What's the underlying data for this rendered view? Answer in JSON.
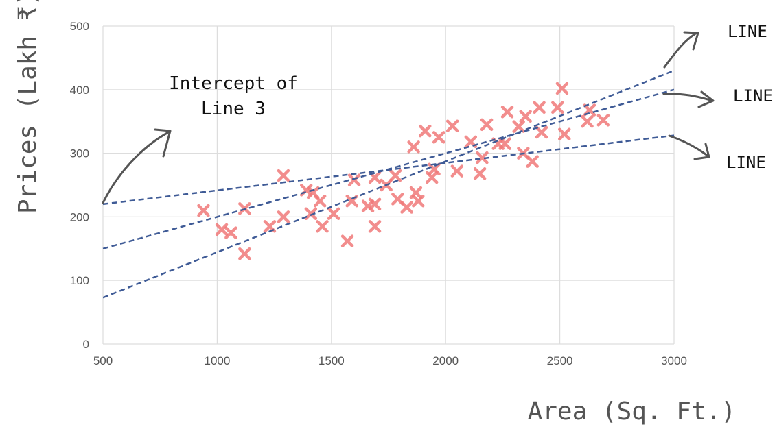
{
  "chart_data": {
    "type": "scatter",
    "xlabel": "Area (Sq. Ft.)",
    "ylabel": "Prices (Lakh ₹)",
    "xlim": [
      500,
      3000
    ],
    "ylim": [
      0,
      500
    ],
    "x_ticks": [
      "500",
      "1000",
      "1500",
      "2000",
      "2500",
      "3000"
    ],
    "y_ticks": [
      "0",
      "100",
      "200",
      "300",
      "400",
      "500"
    ],
    "grid": true,
    "marker": "x",
    "colors": {
      "points": "#f07a7a",
      "lines": "#3f5b96",
      "grid": "#dddddd",
      "arrows": "#555555"
    },
    "points": [
      [
        940,
        210
      ],
      [
        1020,
        180
      ],
      [
        1060,
        175
      ],
      [
        1120,
        213
      ],
      [
        1120,
        142
      ],
      [
        1230,
        185
      ],
      [
        1290,
        265
      ],
      [
        1290,
        200
      ],
      [
        1390,
        242
      ],
      [
        1410,
        205
      ],
      [
        1420,
        238
      ],
      [
        1450,
        225
      ],
      [
        1460,
        185
      ],
      [
        1510,
        205
      ],
      [
        1570,
        162
      ],
      [
        1590,
        225
      ],
      [
        1600,
        258
      ],
      [
        1660,
        217
      ],
      [
        1690,
        185
      ],
      [
        1690,
        220
      ],
      [
        1690,
        262
      ],
      [
        1740,
        250
      ],
      [
        1780,
        265
      ],
      [
        1790,
        228
      ],
      [
        1830,
        215
      ],
      [
        1860,
        310
      ],
      [
        1870,
        238
      ],
      [
        1880,
        225
      ],
      [
        1910,
        335
      ],
      [
        1940,
        262
      ],
      [
        1950,
        275
      ],
      [
        1970,
        325
      ],
      [
        2030,
        343
      ],
      [
        2050,
        272
      ],
      [
        2110,
        318
      ],
      [
        2150,
        268
      ],
      [
        2160,
        293
      ],
      [
        2180,
        345
      ],
      [
        2230,
        315
      ],
      [
        2260,
        315
      ],
      [
        2270,
        365
      ],
      [
        2320,
        342
      ],
      [
        2340,
        300
      ],
      [
        2350,
        358
      ],
      [
        2380,
        287
      ],
      [
        2410,
        372
      ],
      [
        2420,
        333
      ],
      [
        2490,
        372
      ],
      [
        2510,
        402
      ],
      [
        2520,
        330
      ],
      [
        2620,
        350
      ],
      [
        2630,
        368
      ],
      [
        2690,
        352
      ]
    ],
    "series": [
      {
        "values": [
          [
            500,
            220
          ],
          [
            3000,
            328
          ]
        ],
        "style": "dashed"
      },
      {
        "values": [
          [
            500,
            150
          ],
          [
            3000,
            400
          ]
        ],
        "style": "dashed"
      },
      {
        "values": [
          [
            500,
            73
          ],
          [
            3000,
            430
          ]
        ],
        "style": "dashed"
      }
    ],
    "annotations": {
      "intercept_line1": "Intercept of",
      "intercept_line2": "Line 3",
      "line_label_top": "LINE",
      "line_label_mid": "LINE",
      "line_label_bottom": "LINE"
    }
  }
}
